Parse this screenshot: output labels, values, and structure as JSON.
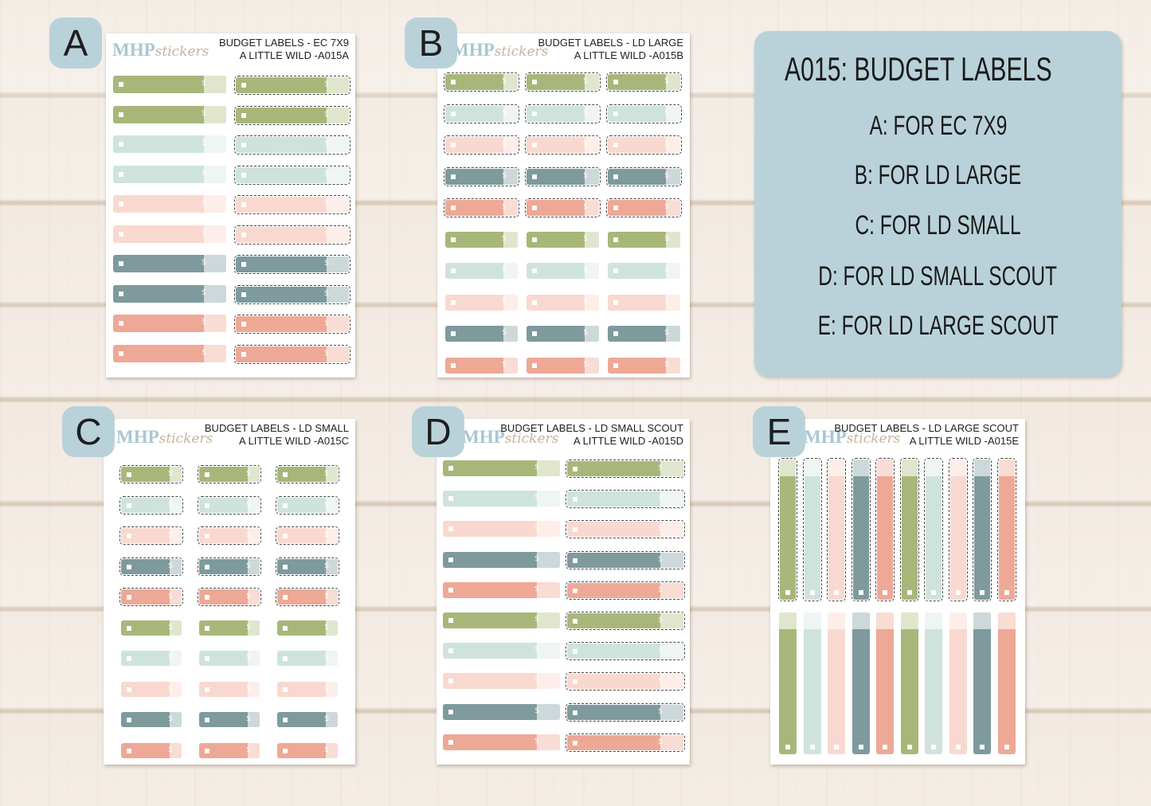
{
  "brand": {
    "main": "MHP",
    "script": "stickers"
  },
  "sheets": [
    {
      "badge": "A",
      "title_line1": "BUDGET LABELS - EC 7X9",
      "title_line2": "A LITTLE WILD -A015A"
    },
    {
      "badge": "B",
      "title_line1": "BUDGET LABELS - LD LARGE",
      "title_line2": "A LITTLE WILD -A015B"
    },
    {
      "badge": "C",
      "title_line1": "BUDGET LABELS - LD SMALL",
      "title_line2": "A LITTLE WILD -A015C"
    },
    {
      "badge": "D",
      "title_line1": "BUDGET LABELS - LD SMALL SCOUT",
      "title_line2": "A LITTLE WILD -A015D"
    },
    {
      "badge": "E",
      "title_line1": "BUDGET LABELS - LD LARGE SCOUT",
      "title_line2": "A LITTLE WILD -A015E"
    }
  ],
  "info": {
    "heading": "A015: BUDGET LABELS",
    "lines": [
      "A: FOR EC 7X9",
      "B: FOR LD LARGE",
      "C: FOR LD SMALL",
      "D: FOR LD SMALL SCOUT",
      "E: FOR LD LARGE SCOUT"
    ]
  },
  "label_glyph": "$",
  "palette": {
    "green": "#a8b779",
    "green_tab": "#dfe6cd",
    "mint": "#cfe3dd",
    "mint_tab": "#eef5f3",
    "pink": "#f9d9cf",
    "pink_tab": "#fdeeea",
    "slate": "#7e9a9d",
    "slate_tab": "#cdd8da",
    "coral": "#eea896",
    "coral_tab": "#f9dcd4"
  }
}
